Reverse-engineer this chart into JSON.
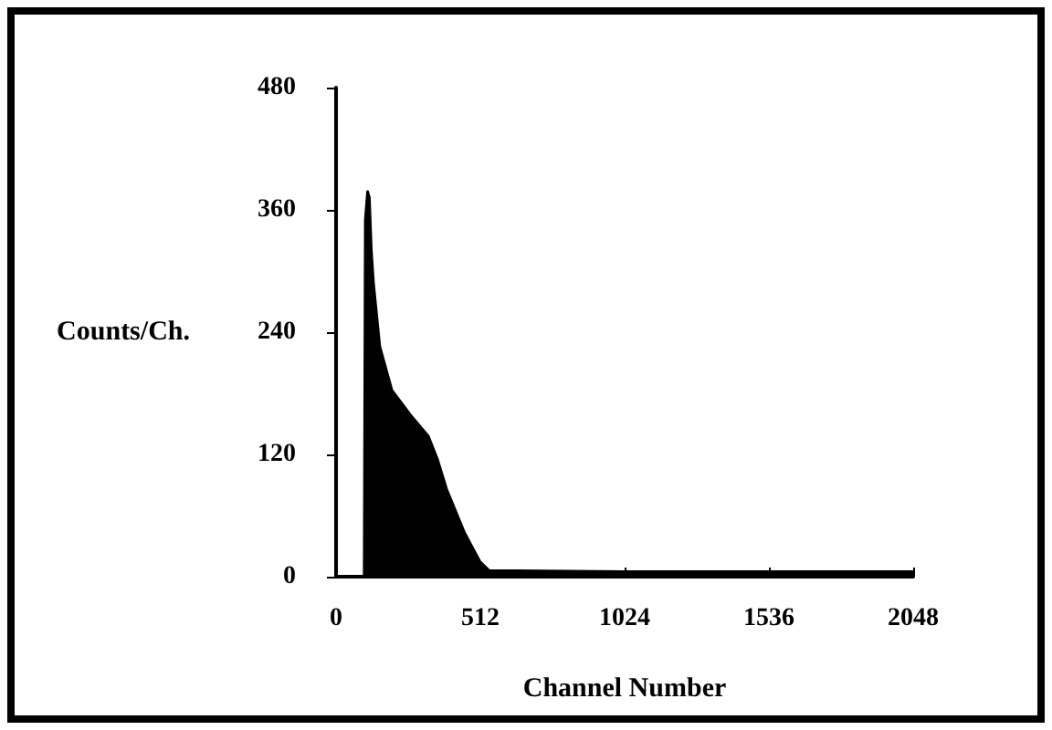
{
  "chart_data": {
    "type": "area",
    "xlabel": "Channel Number",
    "ylabel": "Counts/Ch.",
    "x": [
      100,
      104,
      112,
      118,
      125,
      133,
      155,
      198,
      263,
      327,
      360,
      392,
      456,
      510,
      543,
      1024,
      1536,
      2048
    ],
    "values": [
      0,
      350,
      378,
      372,
      320,
      287,
      226,
      183,
      159,
      138,
      115,
      86,
      43,
      15,
      6,
      5,
      5,
      5
    ],
    "color": "#000000",
    "xlim": [
      0,
      2048
    ],
    "xticks": [
      0,
      512,
      1024,
      1536,
      2048
    ],
    "ylim": [
      0,
      480
    ],
    "yticks": [
      0,
      120,
      240,
      360,
      480
    ],
    "grid": false,
    "marker": "none"
  }
}
